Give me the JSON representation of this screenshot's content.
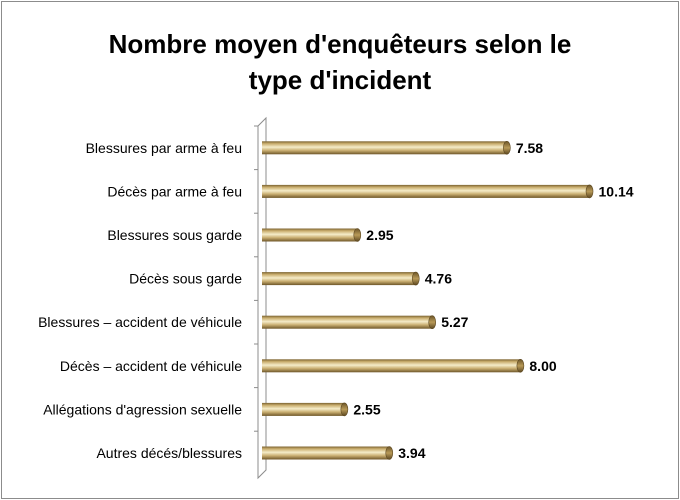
{
  "chart_data": {
    "type": "bar",
    "orientation": "horizontal",
    "title_line1": "Nombre moyen d'enquêteurs selon le",
    "title_line2": "type d'incident",
    "categories": [
      "Blessures par arme à feu",
      "Décès par arme à feu",
      "Blessures sous garde",
      "Décès sous garde",
      "Blessures – accident de véhicule",
      "Décès – accident de véhicule",
      "Allégations d'agression sexuelle",
      "Autres décés/blessures"
    ],
    "values": [
      7.58,
      10.14,
      2.95,
      4.76,
      5.27,
      8.0,
      2.55,
      3.94
    ],
    "value_labels": [
      "7.58",
      "10.14",
      "2.95",
      "4.76",
      "5.27",
      "8.00",
      "2.55",
      "3.94"
    ],
    "xlim": [
      0,
      10.14
    ],
    "grid": false,
    "legend": "none",
    "colors": {
      "bar_light": "#f3e6bd",
      "bar_mid": "#c9ad6d",
      "bar_dark": "#7a6230",
      "axis": "#8c8c8c"
    }
  }
}
